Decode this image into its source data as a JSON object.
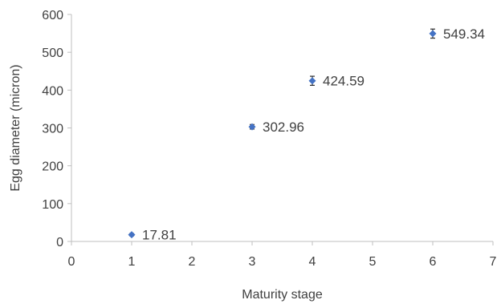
{
  "chart_data": {
    "type": "scatter",
    "title": "",
    "xlabel": "Maturity stage",
    "ylabel": "Egg diameter (micron)",
    "xlim": [
      0,
      7
    ],
    "ylim": [
      0,
      600
    ],
    "xticks": [
      0,
      1,
      2,
      3,
      4,
      5,
      6,
      7
    ],
    "yticks": [
      0,
      100,
      200,
      300,
      400,
      500,
      600
    ],
    "grid": false,
    "marker_color": "#4472c4",
    "series": [
      {
        "points": [
          {
            "x": 1,
            "y": 17.81,
            "error": 3,
            "label": "17.81"
          },
          {
            "x": 3,
            "y": 302.96,
            "error": 6,
            "label": "302.96"
          },
          {
            "x": 4,
            "y": 424.59,
            "error": 12,
            "label": "424.59"
          },
          {
            "x": 6,
            "y": 549.34,
            "error": 12,
            "label": "549.34"
          }
        ]
      }
    ]
  }
}
